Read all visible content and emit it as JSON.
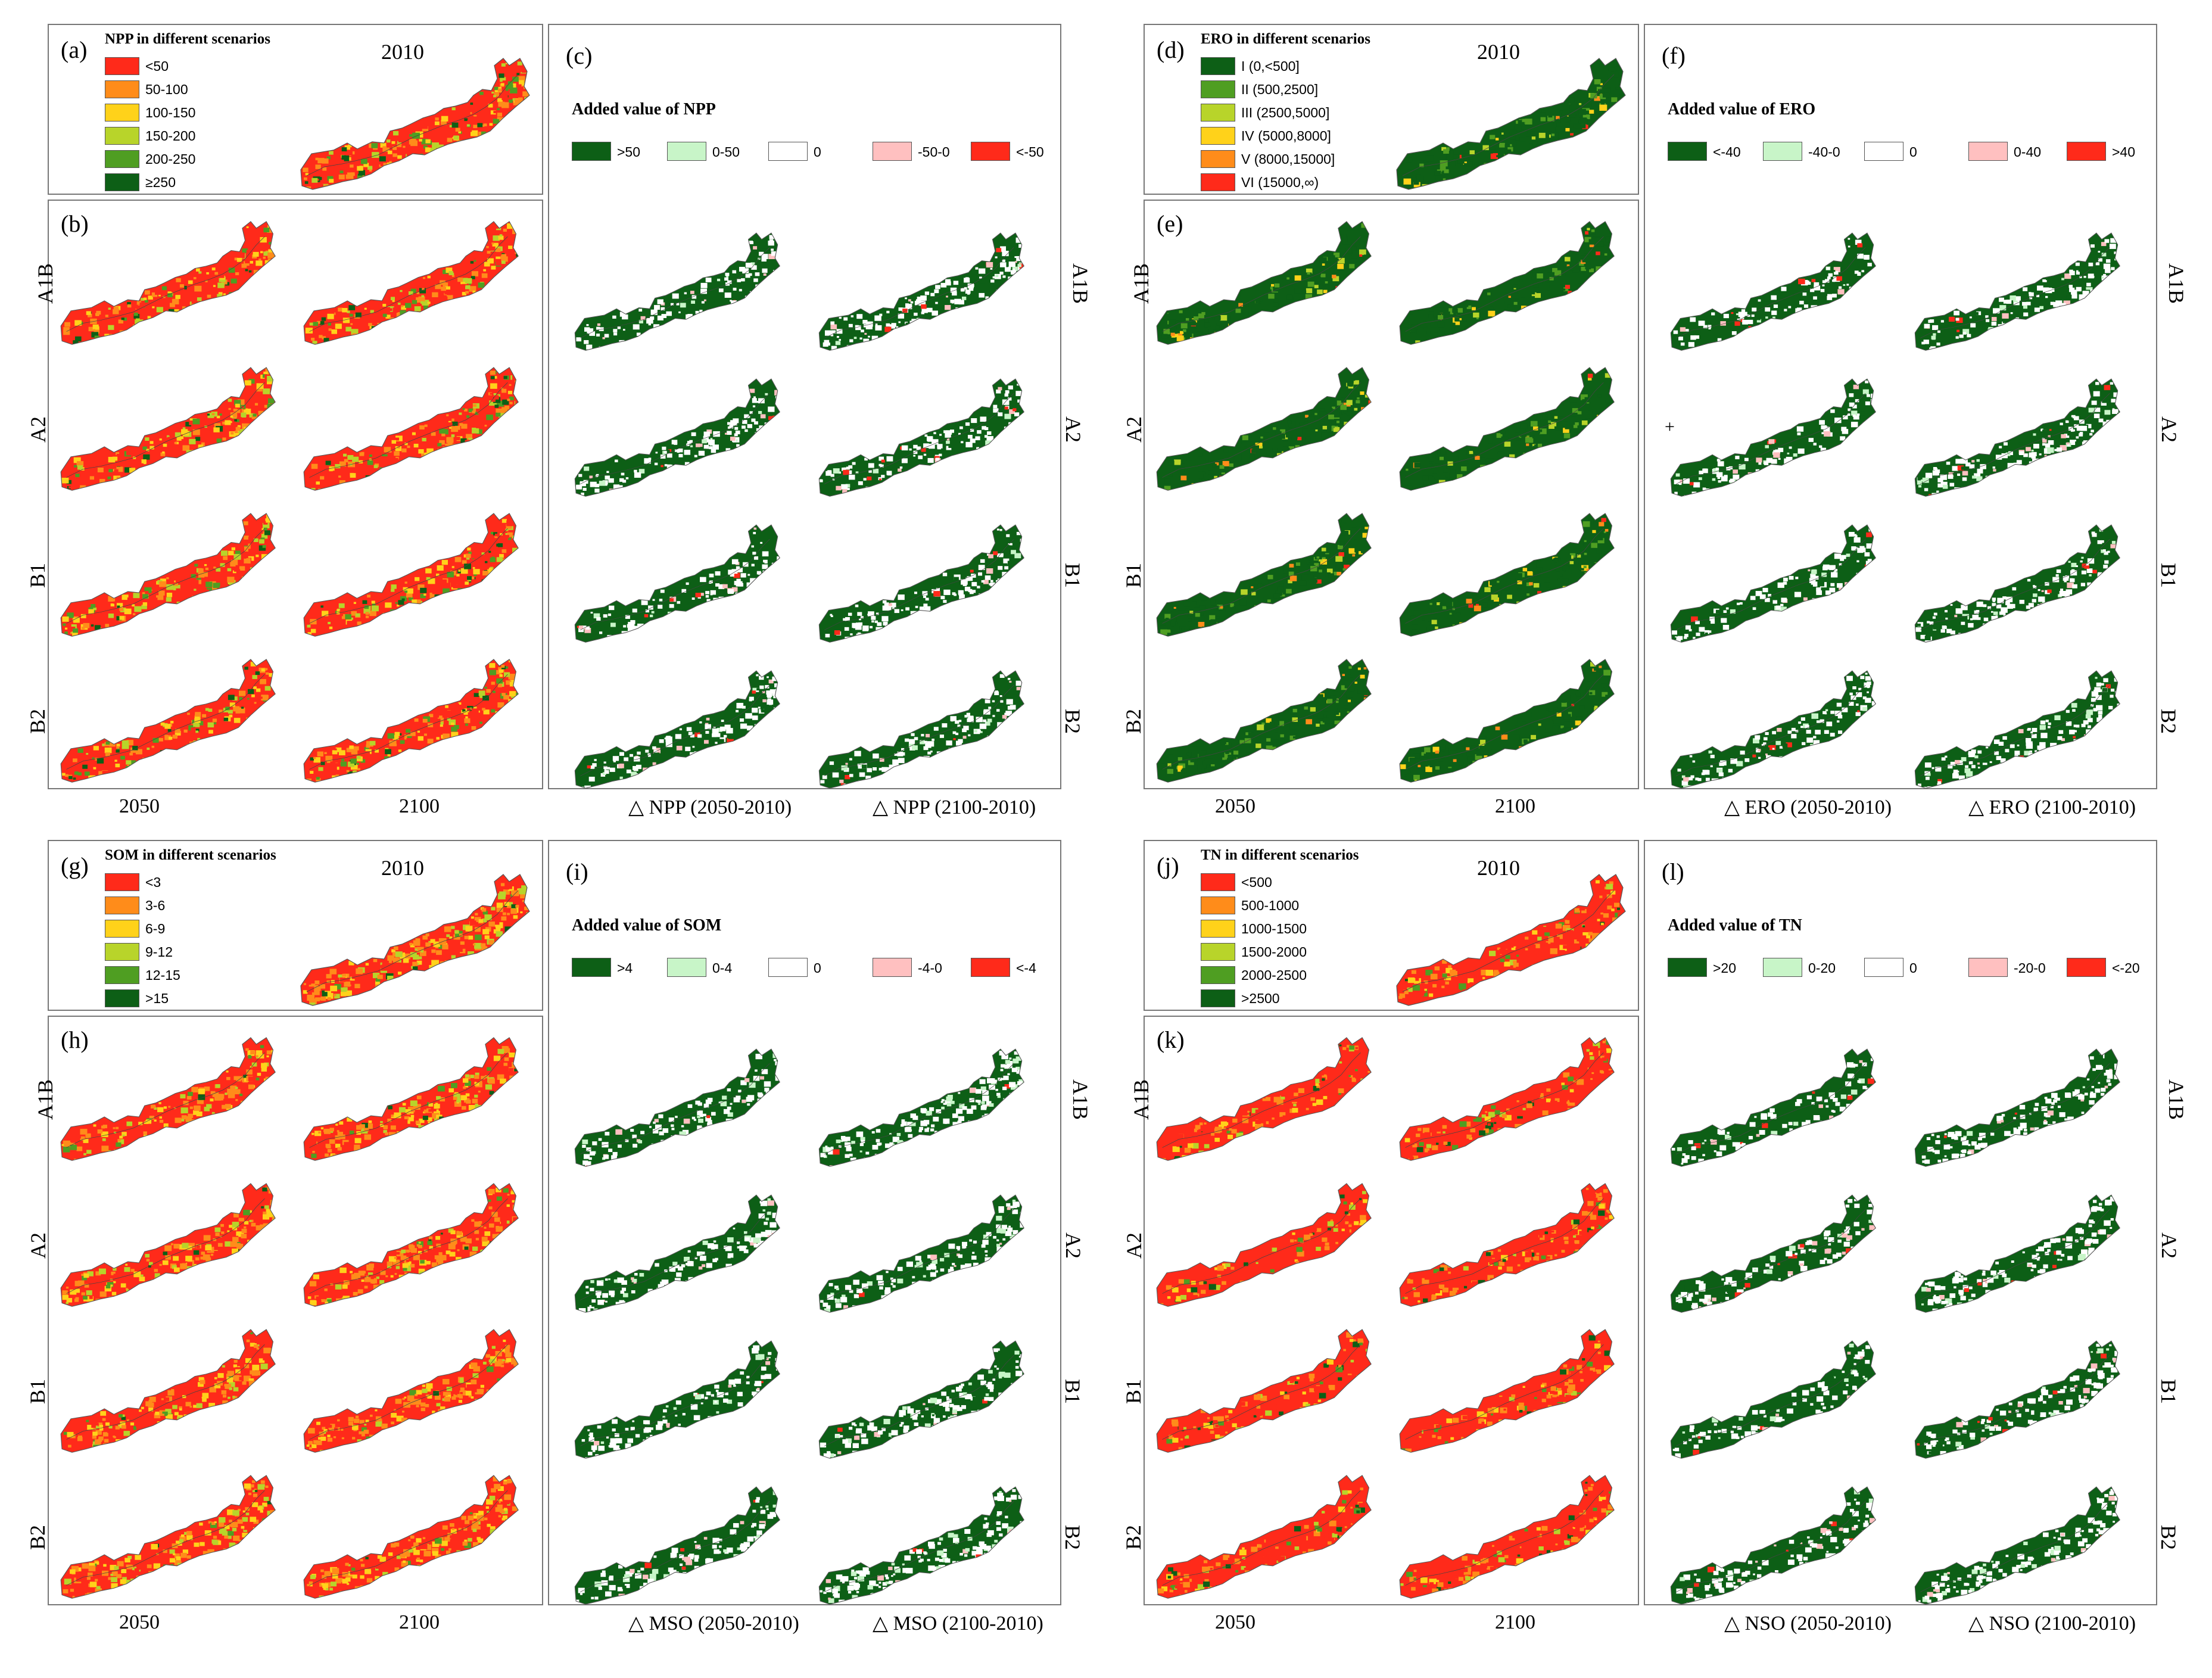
{
  "panels": [
    {
      "id": "npp",
      "label_a": "(a)",
      "label_b": "(b)",
      "label_c": "(c)",
      "legend_title": "NPP in different scenarios",
      "base_year": "2010",
      "legend": [
        {
          "text": "<50",
          "color": "#ff2a1a"
        },
        {
          "text": "50-100",
          "color": "#ff8c1a"
        },
        {
          "text": "100-150",
          "color": "#ffd21a"
        },
        {
          "text": "150-200",
          "color": "#b8d42a"
        },
        {
          "text": "200-250",
          "color": "#4f9e22"
        },
        {
          "text": "≥250",
          "color": "#0d5f16"
        }
      ],
      "added_title": "Added value of NPP",
      "added_legend": [
        {
          "text": ">50",
          "color": "#0d5f16"
        },
        {
          "text": "0-50",
          "color": "#c8f5c8"
        },
        {
          "text": "0",
          "color": "#ffffff"
        },
        {
          "text": "-50-0",
          "color": "#ffc0c0"
        },
        {
          "text": "<-50",
          "color": "#ff2a1a"
        }
      ],
      "bottom_left": [
        "2050",
        "2100"
      ],
      "bottom_right": [
        "△ NPP (2050-2010)",
        "△ NPP (2100-2010)"
      ]
    },
    {
      "id": "ero",
      "label_a": "(d)",
      "label_b": "(e)",
      "label_c": "(f)",
      "legend_title": "ERO in different scenarios",
      "base_year": "2010",
      "legend": [
        {
          "text": "I  (0,<500]",
          "color": "#0d5f16"
        },
        {
          "text": "II  (500,2500]",
          "color": "#4f9e22"
        },
        {
          "text": "III  (2500,5000]",
          "color": "#b8d42a"
        },
        {
          "text": "IV  (5000,8000]",
          "color": "#ffd21a"
        },
        {
          "text": "V  (8000,15000]",
          "color": "#ff8c1a"
        },
        {
          "text": "VI  (15000,∞)",
          "color": "#ff2a1a"
        }
      ],
      "added_title": "Added value of ERO",
      "added_legend": [
        {
          "text": "<-40",
          "color": "#0d5f16"
        },
        {
          "text": "-40-0",
          "color": "#c8f5c8"
        },
        {
          "text": "0",
          "color": "#ffffff"
        },
        {
          "text": "0-40",
          "color": "#ffc0c0"
        },
        {
          "text": ">40",
          "color": "#ff2a1a"
        }
      ],
      "bottom_left": [
        "2050",
        "2100"
      ],
      "bottom_right": [
        "△ ERO (2050-2010)",
        "△ ERO (2100-2010)"
      ]
    },
    {
      "id": "som",
      "label_a": "(g)",
      "label_b": "(h)",
      "label_c": "(i)",
      "legend_title": "SOM in different scenarios",
      "base_year": "2010",
      "legend": [
        {
          "text": "<3",
          "color": "#ff2a1a"
        },
        {
          "text": "3-6",
          "color": "#ff8c1a"
        },
        {
          "text": "6-9",
          "color": "#ffd21a"
        },
        {
          "text": "9-12",
          "color": "#b8d42a"
        },
        {
          "text": "12-15",
          "color": "#4f9e22"
        },
        {
          "text": ">15",
          "color": "#0d5f16"
        }
      ],
      "added_title": "Added value of SOM",
      "added_legend": [
        {
          "text": ">4",
          "color": "#0d5f16"
        },
        {
          "text": "0-4",
          "color": "#c8f5c8"
        },
        {
          "text": "0",
          "color": "#ffffff"
        },
        {
          "text": "-4-0",
          "color": "#ffc0c0"
        },
        {
          "text": "<-4",
          "color": "#ff2a1a"
        }
      ],
      "bottom_left": [
        "2050",
        "2100"
      ],
      "bottom_right": [
        "△ MSO (2050-2010)",
        "△ MSO (2100-2010)"
      ]
    },
    {
      "id": "tn",
      "label_a": "(j)",
      "label_b": "(k)",
      "label_c": "(l)",
      "legend_title": "TN in different scenarios",
      "base_year": "2010",
      "legend": [
        {
          "text": "<500",
          "color": "#ff2a1a"
        },
        {
          "text": "500-1000",
          "color": "#ff8c1a"
        },
        {
          "text": "1000-1500",
          "color": "#ffd21a"
        },
        {
          "text": "1500-2000",
          "color": "#b8d42a"
        },
        {
          "text": "2000-2500",
          "color": "#4f9e22"
        },
        {
          "text": ">2500",
          "color": "#0d5f16"
        }
      ],
      "added_title": "Added value of TN",
      "added_legend": [
        {
          "text": ">20",
          "color": "#0d5f16"
        },
        {
          "text": "0-20",
          "color": "#c8f5c8"
        },
        {
          "text": "0",
          "color": "#ffffff"
        },
        {
          "text": "-20-0",
          "color": "#ffc0c0"
        },
        {
          "text": "<-20",
          "color": "#ff2a1a"
        }
      ],
      "bottom_left": [
        "2050",
        "2100"
      ],
      "bottom_right": [
        "△ NSO (2050-2010)",
        "△ NSO (2100-2010)"
      ]
    }
  ],
  "scenarios": [
    "A1B",
    "A2",
    "B1",
    "B2"
  ],
  "plus_mark": "+"
}
